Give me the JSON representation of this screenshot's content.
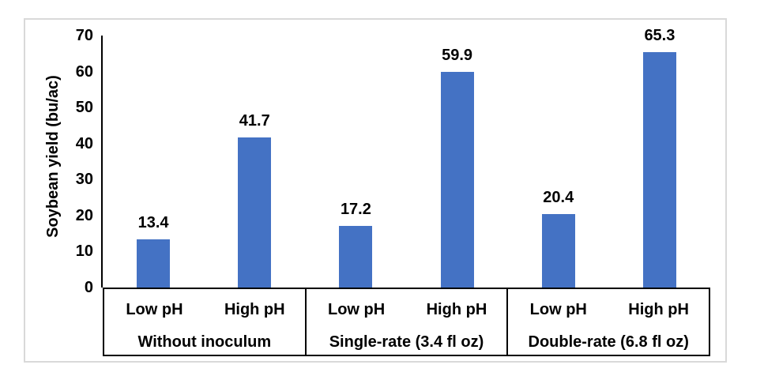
{
  "chart_data": {
    "type": "bar",
    "ylabel": "Soybean yield (bu/ac)",
    "ylim": [
      0,
      70
    ],
    "yticks": [
      0,
      10,
      20,
      30,
      40,
      50,
      60,
      70
    ],
    "grid": false,
    "legend": false,
    "bar_color": "#4472c4",
    "axis_color": "#000000",
    "frame_border_color": "#d9d9d9",
    "text_color": "#000000",
    "groups": [
      {
        "label": "Without inoculum",
        "categories": [
          "Low pH",
          "High pH"
        ],
        "values": [
          13.4,
          41.7
        ]
      },
      {
        "label": "Single-rate (3.4 fl oz)",
        "categories": [
          "Low pH",
          "High pH"
        ],
        "values": [
          17.2,
          59.9
        ]
      },
      {
        "label": "Double-rate (6.8 fl oz)",
        "categories": [
          "Low pH",
          "High pH"
        ],
        "values": [
          20.4,
          65.3
        ]
      }
    ],
    "data_labels": [
      "13.4",
      "41.7",
      "17.2",
      "59.9",
      "20.4",
      "65.3"
    ]
  }
}
